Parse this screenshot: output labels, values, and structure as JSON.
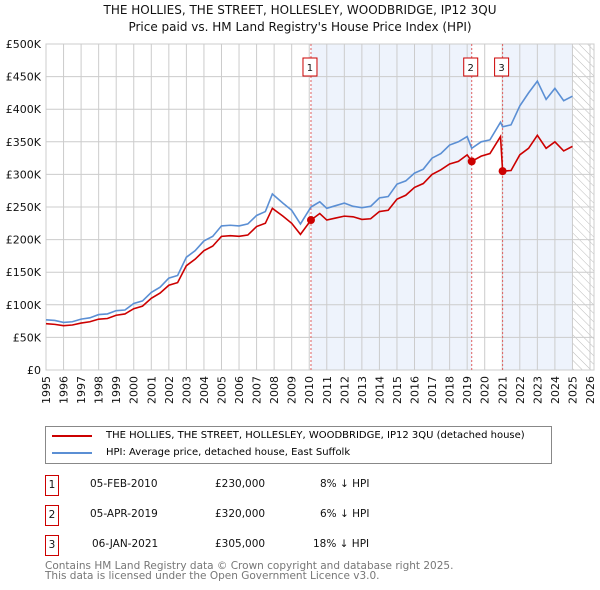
{
  "chart_data": {
    "type": "line",
    "title": "THE HOLLIES, THE STREET, HOLLESLEY, WOODBRIDGE, IP12 3QU",
    "subtitle": "Price paid vs. HM Land Registry's House Price Index (HPI)",
    "xlim": [
      1995,
      2026
    ],
    "ylim": [
      0,
      500000
    ],
    "y_ticks": [
      0,
      50000,
      100000,
      150000,
      200000,
      250000,
      300000,
      350000,
      400000,
      450000,
      500000
    ],
    "y_tick_labels": [
      "£0",
      "£50K",
      "£100K",
      "£150K",
      "£200K",
      "£250K",
      "£300K",
      "£350K",
      "£400K",
      "£450K",
      "£500K"
    ],
    "x_ticks": [
      "1995",
      "1996",
      "1997",
      "1998",
      "1999",
      "2000",
      "2001",
      "2002",
      "2003",
      "2004",
      "2005",
      "2006",
      "2007",
      "2008",
      "2009",
      "2010",
      "2011",
      "2012",
      "2013",
      "2014",
      "2015",
      "2016",
      "2017",
      "2018",
      "2019",
      "2020",
      "2021",
      "2022",
      "2023",
      "2024",
      "2025",
      "2026"
    ],
    "grid": true,
    "shaded_ranges": [
      [
        2010.1,
        2019.26
      ],
      [
        2021.02,
        2025.0
      ]
    ],
    "hatched_from": 2025.0,
    "series": [
      {
        "name": "THE HOLLIES, THE STREET, HOLLESLEY, WOODBRIDGE, IP12 3QU (detached house)",
        "color": "#cc0000",
        "x": [
          1995,
          1995.5,
          1996,
          1996.5,
          1997,
          1997.5,
          1998,
          1998.5,
          1999,
          1999.5,
          2000,
          2000.5,
          2001,
          2001.5,
          2002,
          2002.5,
          2003,
          2003.5,
          2004,
          2004.5,
          2005,
          2005.5,
          2006,
          2006.5,
          2007,
          2007.5,
          2007.9,
          2008.5,
          2009,
          2009.5,
          2010.1,
          2010.6,
          2011,
          2011.5,
          2012,
          2012.5,
          2013,
          2013.5,
          2014,
          2014.5,
          2015,
          2015.5,
          2016,
          2016.5,
          2017,
          2017.5,
          2018,
          2018.5,
          2019,
          2019.26,
          2019.8,
          2020.3,
          2020.9,
          2021.02,
          2021.5,
          2022,
          2022.5,
          2023,
          2023.5,
          2024,
          2024.5,
          2025
        ],
        "y": [
          71000,
          70000,
          68000,
          69000,
          72000,
          74000,
          78000,
          79000,
          84000,
          86000,
          94000,
          98000,
          110000,
          118000,
          130000,
          134000,
          160000,
          170000,
          183000,
          190000,
          205000,
          206000,
          205000,
          207000,
          220000,
          225000,
          248000,
          236000,
          225000,
          208000,
          230000,
          240000,
          230000,
          233000,
          236000,
          235000,
          231000,
          232000,
          243000,
          245000,
          262000,
          268000,
          280000,
          286000,
          300000,
          307000,
          316000,
          320000,
          330000,
          320000,
          328000,
          332000,
          358000,
          305000,
          306000,
          330000,
          340000,
          360000,
          340000,
          350000,
          336000,
          343000
        ]
      },
      {
        "name": "HPI: Average price, detached house, East Suffolk",
        "color": "#5b8fd4",
        "x": [
          1995,
          1995.5,
          1996,
          1996.5,
          1997,
          1997.5,
          1998,
          1998.5,
          1999,
          1999.5,
          2000,
          2000.5,
          2001,
          2001.5,
          2002,
          2002.5,
          2003,
          2003.5,
          2004,
          2004.5,
          2005,
          2005.5,
          2006,
          2006.5,
          2007,
          2007.5,
          2007.9,
          2008.5,
          2009,
          2009.5,
          2010.1,
          2010.6,
          2011,
          2011.5,
          2012,
          2012.5,
          2013,
          2013.5,
          2014,
          2014.5,
          2015,
          2015.5,
          2016,
          2016.5,
          2017,
          2017.5,
          2018,
          2018.5,
          2019,
          2019.26,
          2019.8,
          2020.3,
          2020.9,
          2021.02,
          2021.5,
          2022,
          2022.5,
          2023,
          2023.5,
          2024,
          2024.5,
          2025
        ],
        "y": [
          77000,
          76000,
          73000,
          74000,
          78000,
          80000,
          85000,
          86000,
          91000,
          92000,
          102000,
          106000,
          119000,
          127000,
          141000,
          145000,
          173000,
          183000,
          198000,
          205000,
          221000,
          222000,
          221000,
          224000,
          237000,
          243000,
          270000,
          256000,
          245000,
          224000,
          250000,
          258000,
          248000,
          252000,
          256000,
          251000,
          249000,
          251000,
          264000,
          266000,
          285000,
          290000,
          302000,
          308000,
          325000,
          332000,
          345000,
          350000,
          358000,
          340000,
          350000,
          353000,
          380000,
          373000,
          376000,
          405000,
          425000,
          443000,
          415000,
          432000,
          413000,
          420000
        ]
      }
    ],
    "annotations": [
      {
        "label": "1",
        "x": 2010.1,
        "y": 230000
      },
      {
        "label": "2",
        "x": 2019.26,
        "y": 320000
      },
      {
        "label": "3",
        "x": 2021.02,
        "y": 305000
      }
    ]
  },
  "transactions": [
    {
      "num": "1",
      "date": "05-FEB-2010",
      "price": "£230,000",
      "delta": "8% ↓ HPI"
    },
    {
      "num": "2",
      "date": "05-APR-2019",
      "price": "£320,000",
      "delta": "6% ↓ HPI"
    },
    {
      "num": "3",
      "date": "06-JAN-2021",
      "price": "£305,000",
      "delta": "18% ↓ HPI"
    }
  ],
  "footer": {
    "line1": "Contains HM Land Registry data © Crown copyright and database right 2025.",
    "line2": "This data is licensed under the Open Government Licence v3.0."
  }
}
